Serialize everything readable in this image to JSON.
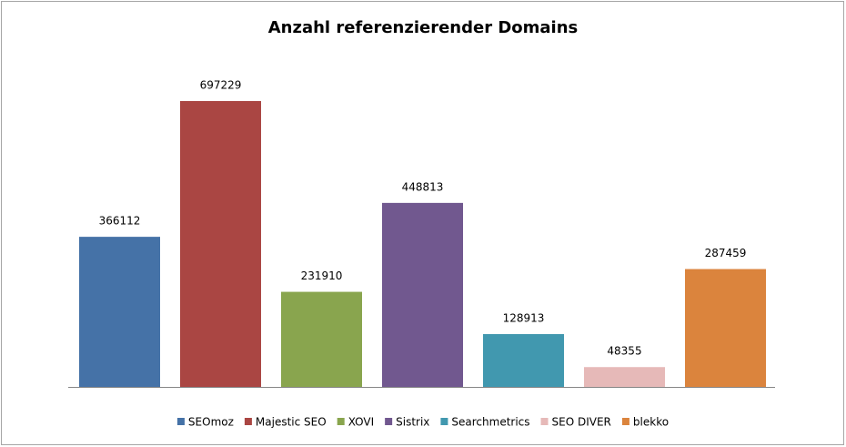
{
  "chart_data": {
    "type": "bar",
    "title": "Anzahl referenzierender Domains",
    "series": [
      {
        "name": "SEOmoz",
        "color": "#4572a7",
        "values": [
          366112
        ]
      },
      {
        "name": "Majestic SEO",
        "color": "#aa4643",
        "values": [
          697229
        ]
      },
      {
        "name": "XOVI",
        "color": "#89a54e",
        "values": [
          231910
        ]
      },
      {
        "name": "Sistrix",
        "color": "#71588f",
        "values": [
          448813
        ]
      },
      {
        "name": "Searchmetrics",
        "color": "#4198af",
        "values": [
          128913
        ]
      },
      {
        "name": "SEO DIVER",
        "color": "#e6b9b8",
        "values": [
          48355
        ]
      },
      {
        "name": "blekko",
        "color": "#db843d",
        "values": [
          287459
        ]
      }
    ],
    "legend": "bottom"
  }
}
